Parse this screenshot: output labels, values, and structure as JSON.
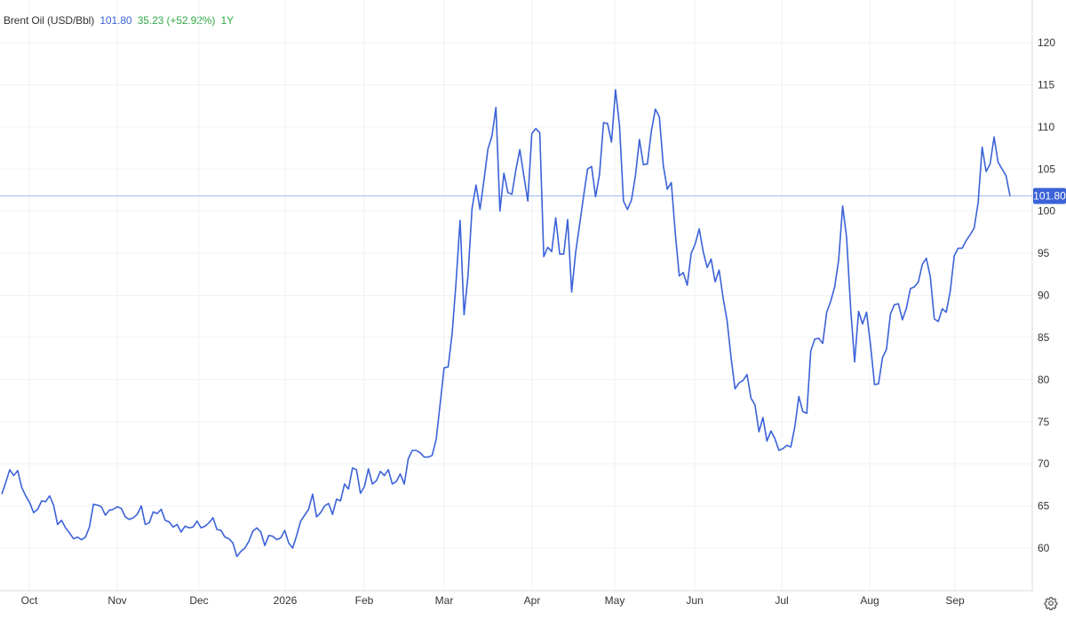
{
  "header": {
    "instrument": "Brent Oil (USD/Bbl)",
    "last": "101.80",
    "change": "35.23 (+52.92%)",
    "period": "1Y"
  },
  "colors": {
    "line": "#3b62d8",
    "up": "#35a848",
    "grid": "#eef1f6",
    "axis_text": "#333333",
    "badge": "#3b62d8",
    "last_line": "#9fb4ee"
  },
  "icons": {
    "settings": "gear-icon"
  },
  "chart_data": {
    "type": "line",
    "title": "Brent Oil (USD/Bbl)",
    "xlabel": "",
    "ylabel": "",
    "ylim": [
      55,
      122
    ],
    "yticks": [
      60,
      65,
      70,
      75,
      80,
      85,
      90,
      95,
      100,
      105,
      110,
      115,
      120
    ],
    "xticks": [
      "Oct",
      "Nov",
      "Dec",
      "2026",
      "Feb",
      "Mar",
      "Apr",
      "May",
      "Jun",
      "Jul",
      "Aug",
      "Sep"
    ],
    "grid": true,
    "legend": "none",
    "last_value": "101.80",
    "series": [
      {
        "values": [
          66.4,
          67.8,
          69.3,
          68.6,
          69.2,
          67.2,
          66.2,
          65.4,
          64.2,
          64.6,
          65.6,
          65.5,
          66.2,
          65.1,
          62.8,
          63.3,
          62.4,
          61.8,
          61.1,
          61.3,
          61.0,
          61.3,
          62.5,
          65.2,
          65.1,
          64.9,
          63.9,
          64.5,
          64.6,
          64.9,
          64.7,
          63.7,
          63.4,
          63.6,
          64.0,
          65.0,
          62.8,
          63.0,
          64.3,
          64.1,
          64.6,
          63.3,
          63.1,
          62.5,
          62.8,
          61.9,
          62.6,
          62.4,
          62.5,
          63.2,
          62.4,
          62.6,
          63.0,
          63.6,
          62.2,
          62.1,
          61.3,
          61.1,
          60.6,
          59.0,
          59.6,
          60.0,
          60.8,
          62.0,
          62.4,
          61.9,
          60.3,
          61.5,
          61.4,
          61.0,
          61.2,
          62.1,
          60.6,
          60.0,
          61.5,
          63.2,
          63.9,
          64.6,
          66.4,
          63.7,
          64.2,
          65.0,
          65.3,
          64.0,
          65.8,
          65.6,
          67.6,
          67.0,
          69.5,
          69.3,
          66.5,
          67.3,
          69.4,
          67.6,
          68.0,
          69.1,
          68.6,
          69.3,
          67.6,
          67.9,
          68.8,
          67.6,
          70.6,
          71.6,
          71.6,
          71.3,
          70.8,
          70.8,
          71.0,
          72.9,
          77.1,
          81.4,
          81.5,
          85.4,
          91.6,
          98.9,
          87.7,
          92.4,
          100.3,
          103.1,
          100.2,
          103.7,
          107.4,
          108.9,
          112.3,
          100.0,
          104.5,
          102.2,
          102.0,
          104.9,
          107.3,
          104.2,
          101.2,
          109.2,
          109.8,
          109.3,
          94.6,
          95.7,
          95.2,
          99.2,
          94.9,
          94.9,
          99.0,
          90.4,
          95.1,
          98.4,
          101.8,
          105.0,
          105.3,
          101.7,
          104.4,
          110.5,
          110.4,
          108.2,
          114.4,
          110.2,
          101.2,
          100.2,
          101.3,
          104.2,
          108.5,
          105.5,
          105.6,
          109.5,
          112.1,
          111.2,
          105.4,
          102.6,
          103.4,
          97.4,
          92.3,
          92.7,
          91.2,
          95.0,
          96.1,
          97.9,
          95.2,
          93.3,
          94.3,
          91.6,
          93.0,
          89.7,
          87.0,
          82.6,
          78.9,
          79.6,
          79.9,
          80.6,
          77.8,
          77.0,
          73.8,
          75.5,
          72.7,
          73.9,
          73.0,
          71.6,
          71.8,
          72.2,
          72.0,
          74.4,
          78.0,
          76.2,
          76.0,
          83.4,
          84.8,
          84.9,
          84.3,
          88.0,
          89.3,
          91.0,
          94.2,
          100.6,
          96.8,
          88.5,
          82.1,
          88.1,
          86.6,
          88.0,
          84.1,
          79.4,
          79.5,
          82.6,
          83.6,
          87.8,
          88.9,
          89.0,
          87.1,
          88.5,
          90.8,
          91.0,
          91.6,
          93.7,
          94.4,
          92.2,
          87.2,
          86.9,
          88.4,
          88.0,
          90.5,
          94.7,
          95.6,
          95.6,
          96.5,
          97.2,
          98.0,
          101.0,
          107.6,
          104.7,
          105.6,
          108.8,
          105.8,
          105.0,
          104.2,
          101.8
        ]
      }
    ]
  }
}
